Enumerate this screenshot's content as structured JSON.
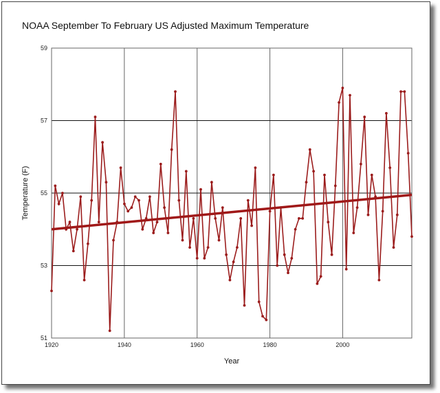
{
  "chart_data": {
    "type": "line",
    "title": "NOAA September To February US Adjusted Maximum Temperature",
    "xlabel": "Year",
    "ylabel": "Temperature (F)",
    "xlim": [
      1920,
      2019
    ],
    "ylim": [
      51,
      59
    ],
    "xticks": [
      1920,
      1940,
      1960,
      1980,
      2000
    ],
    "yticks": [
      51,
      53,
      55,
      57,
      59
    ],
    "grid": true,
    "colors": {
      "series": "#9b1c1c",
      "trend": "#a01818",
      "grid": "#666666"
    },
    "series": [
      {
        "x": [
          1920,
          1921,
          1922,
          1923,
          1924,
          1925,
          1926,
          1927,
          1928,
          1929,
          1930,
          1931,
          1932,
          1933,
          1934,
          1935,
          1936,
          1937,
          1938,
          1939,
          1940,
          1941,
          1942,
          1943,
          1944,
          1945,
          1946,
          1947,
          1948,
          1949,
          1950,
          1951,
          1952,
          1953,
          1954,
          1955,
          1956,
          1957,
          1958,
          1959,
          1960,
          1961,
          1962,
          1963,
          1964,
          1965,
          1966,
          1967,
          1968,
          1969,
          1970,
          1971,
          1972,
          1973,
          1974,
          1975,
          1976,
          1977,
          1978,
          1979,
          1980,
          1981,
          1982,
          1983,
          1984,
          1985,
          1986,
          1987,
          1988,
          1989,
          1990,
          1991,
          1992,
          1993,
          1994,
          1995,
          1996,
          1997,
          1998,
          1999,
          2000,
          2001,
          2002,
          2003,
          2004,
          2005,
          2006,
          2007,
          2008,
          2009,
          2010,
          2011,
          2012,
          2013,
          2014,
          2015,
          2016,
          2017,
          2018,
          2019
        ],
        "values": [
          52.3,
          55.2,
          54.7,
          55.0,
          54.0,
          54.2,
          53.4,
          54.0,
          54.9,
          52.6,
          53.6,
          54.8,
          57.1,
          54.2,
          56.4,
          55.3,
          51.2,
          53.7,
          54.2,
          55.7,
          54.7,
          54.5,
          54.6,
          54.9,
          54.8,
          54.0,
          54.3,
          54.9,
          53.9,
          54.2,
          55.8,
          54.6,
          53.9,
          56.2,
          57.8,
          54.8,
          53.7,
          55.6,
          53.5,
          54.3,
          53.2,
          55.1,
          53.2,
          53.5,
          55.3,
          54.3,
          53.7,
          54.6,
          53.3,
          52.6,
          53.1,
          53.5,
          54.3,
          51.9,
          54.8,
          54.1,
          55.7,
          52.0,
          51.6,
          51.5,
          54.5,
          55.5,
          53.0,
          54.6,
          53.3,
          52.8,
          53.2,
          54.0,
          54.3,
          54.3,
          55.3,
          56.2,
          55.6,
          52.5,
          52.7,
          55.5,
          54.2,
          53.3,
          55.2,
          57.5,
          57.9,
          52.9,
          57.7,
          53.9,
          54.6,
          55.8,
          57.1,
          54.4,
          55.5,
          54.9,
          52.6,
          54.5,
          57.2,
          55.7,
          53.5,
          54.4,
          57.8,
          57.8,
          56.1,
          53.8
        ]
      }
    ],
    "trend": {
      "x": [
        1920,
        2019
      ],
      "values": [
        54.0,
        54.95
      ]
    }
  }
}
